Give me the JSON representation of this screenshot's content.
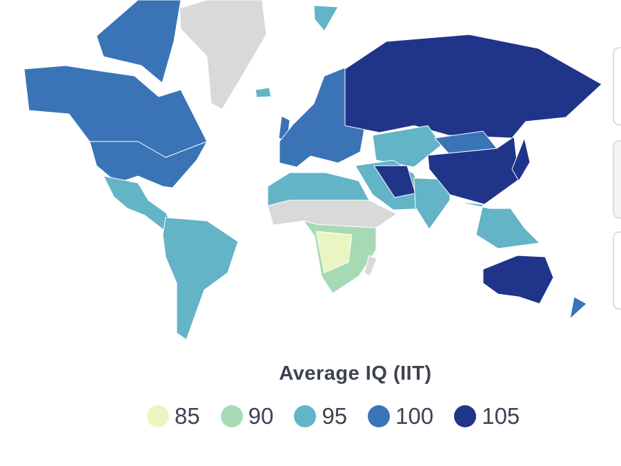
{
  "legend": {
    "title": "Average IQ (IIT)",
    "items": [
      {
        "label": "85",
        "color": "#e9f6c2"
      },
      {
        "label": "90",
        "color": "#a6dab5"
      },
      {
        "label": "95",
        "color": "#63b4c7"
      },
      {
        "label": "100",
        "color": "#3a74b6"
      },
      {
        "label": "105",
        "color": "#20348a"
      }
    ],
    "no_data_color": "#d9d9d9"
  }
}
